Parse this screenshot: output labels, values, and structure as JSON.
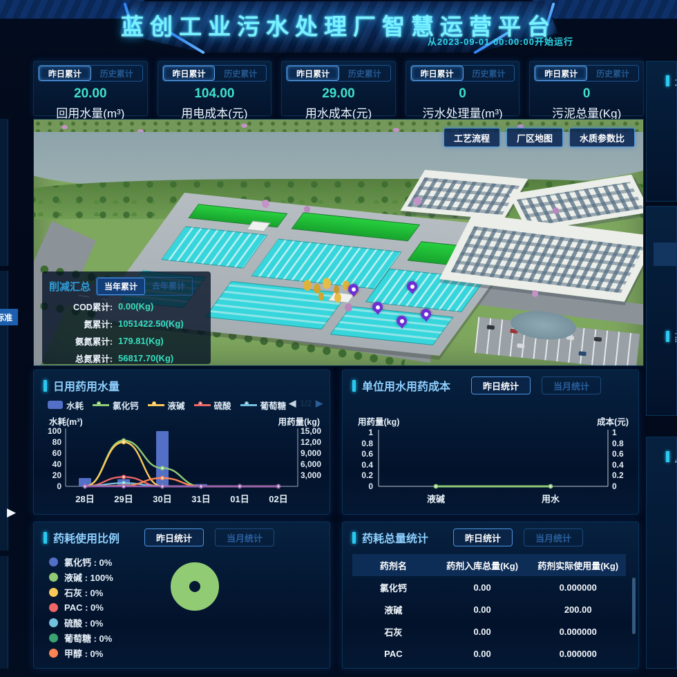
{
  "header": {
    "title": "蓝创工业污水处理厂智慧运营平台",
    "subtitle": "从2023-09-01 00:00:00开始运行"
  },
  "stat_tabs": {
    "active": "昨日累计",
    "inactive": "历史累计"
  },
  "stat_cards": [
    {
      "value": "20.00",
      "label": "回用水量(m³)"
    },
    {
      "value": "104.00",
      "label": "用电成本(元)"
    },
    {
      "value": "29.00",
      "label": "用水成本(元)"
    },
    {
      "value": "0",
      "label": "污水处理量(m³)"
    },
    {
      "value": "0",
      "label": "污泥总量(Kg)"
    }
  ],
  "scene": {
    "buttons": [
      "工艺流程",
      "厂区地图",
      "水质参数比"
    ],
    "reduction": {
      "title": "削减汇总",
      "tab_active": "当年累计",
      "tab_inactive": "去年累计",
      "rows": [
        {
          "label": "COD累计:",
          "value": "0.00(Kg)"
        },
        {
          "label": "氮累计:",
          "value": "1051422.50(Kg)"
        },
        {
          "label": "氨氮累计:",
          "value": "179.81(Kg)"
        },
        {
          "label": "总氮累计:",
          "value": "56817.70(Kg)"
        }
      ]
    }
  },
  "panel_buttons": {
    "active": "昨日统计",
    "inactive": "当月统计"
  },
  "panels": {
    "daily": {
      "title": "日用药用水量",
      "left_axis": "水耗(m³)",
      "right_axis": "用药量(kg)"
    },
    "unit_cost": {
      "title": "单位用水用药成本",
      "left_axis": "用药量(kg)",
      "right_axis": "成本(元)"
    },
    "ratio": {
      "title": "药耗使用比例"
    },
    "total": {
      "title": "药耗总量统计"
    }
  },
  "icons": {
    "legend_prev": "◀",
    "legend_next": "▶",
    "panel_expand_arrow": "▶"
  },
  "edge": {
    "left_badge": "标准",
    "right_titles": [
      "水",
      "药",
      "用"
    ]
  },
  "chart_data": [
    {
      "id": "daily_usage",
      "type": "bar+line",
      "title": "日用药用水量",
      "categories": [
        "28日",
        "29日",
        "30日",
        "31日",
        "01日",
        "02日"
      ],
      "y_left": {
        "label": "水耗(m³)",
        "ticks": [
          "100",
          "80",
          "60",
          "40",
          "20",
          "0"
        ],
        "range": [
          0,
          100
        ]
      },
      "y_right": {
        "label": "用药量(kg)",
        "ticks": [
          "15,00",
          "12,00",
          "9,000",
          "6,000",
          "3,000"
        ]
      },
      "legend_page": "1/2",
      "series": [
        {
          "name": "水耗",
          "type": "bar",
          "color": "#5470c6",
          "values": [
            15,
            13,
            100,
            4,
            0,
            0
          ]
        },
        {
          "name": "氯化钙",
          "type": "line",
          "color": "#91cc75",
          "values": [
            0,
            83,
            33,
            0,
            0,
            0
          ]
        },
        {
          "name": "液碱",
          "type": "line",
          "color": "#fac858",
          "values": [
            0,
            80,
            0,
            0,
            0,
            0
          ]
        },
        {
          "name": "硫酸",
          "type": "line",
          "color": "#ee6666",
          "values": [
            0,
            17,
            0,
            0,
            0,
            0
          ]
        },
        {
          "name": "葡萄糖",
          "type": "line",
          "color": "#73c0de",
          "values": [
            0,
            6,
            0,
            0,
            0,
            0
          ]
        },
        {
          "name": "甲醇",
          "type": "line",
          "color": "#fc8452",
          "values": [
            0,
            1,
            15,
            0,
            0,
            0
          ]
        },
        {
          "name": "",
          "type": "line",
          "color": "#9a60b4",
          "values": [
            0,
            0,
            0,
            0,
            0,
            0
          ]
        }
      ]
    },
    {
      "id": "unit_cost",
      "type": "line",
      "title": "单位用水用药成本",
      "categories": [
        "液碱",
        "用水"
      ],
      "ticks": [
        "1",
        "0.8",
        "0.6",
        "0.4",
        "0.2",
        "0"
      ],
      "range": [
        0,
        1
      ],
      "series": [
        {
          "name": "",
          "type": "line",
          "color": "#91cc75",
          "values": [
            0,
            0
          ]
        }
      ]
    },
    {
      "id": "ratio",
      "type": "pie",
      "title": "药耗使用比例",
      "slices": [
        {
          "name": "氯化钙",
          "pct": 0,
          "color": "#5470c6",
          "label": "氯化钙 : 0%"
        },
        {
          "name": "液碱",
          "pct": 100,
          "color": "#91cc75",
          "label": "液碱 : 100%"
        },
        {
          "name": "石灰",
          "pct": 0,
          "color": "#fac858",
          "label": "石灰 : 0%"
        },
        {
          "name": "PAC",
          "pct": 0,
          "color": "#ee6666",
          "label": "PAC : 0%"
        },
        {
          "name": "硫酸",
          "pct": 0,
          "color": "#73c0de",
          "label": "硫酸 : 0%"
        },
        {
          "name": "葡萄糖",
          "pct": 0,
          "color": "#3ba272",
          "label": "葡萄糖 : 0%"
        },
        {
          "name": "甲醇",
          "pct": 0,
          "color": "#fc8452",
          "label": "甲醇 : 0%"
        }
      ]
    },
    {
      "id": "total",
      "type": "table",
      "title": "药耗总量统计",
      "headers": [
        "药剂名",
        "药剂入库总量(Kg)",
        "药剂实际使用量(Kg)"
      ],
      "rows": [
        [
          "氯化钙",
          "0.00",
          "0.000000"
        ],
        [
          "液碱",
          "0.00",
          "200.00"
        ],
        [
          "石灰",
          "0.00",
          "0.000000"
        ],
        [
          "PAC",
          "0.00",
          "0.000000"
        ]
      ]
    }
  ]
}
